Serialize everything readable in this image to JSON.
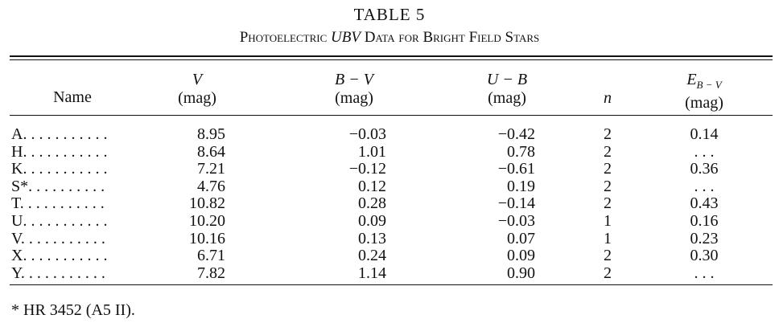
{
  "table": {
    "title": "TABLE 5",
    "subtitle_prefix": "Photoelectric ",
    "subtitle_italic": "UBV",
    "subtitle_suffix": " Data for Bright Field Stars",
    "headers": {
      "name": "Name",
      "v": "V",
      "v_unit": "(mag)",
      "bv": "B − V",
      "bv_unit": "(mag)",
      "ub": "U − B",
      "ub_unit": "(mag)",
      "n": "n",
      "e": "E",
      "e_sub": "B − V",
      "e_unit": "(mag)"
    },
    "rows": [
      {
        "name": "A. . . . . . . . . . .",
        "v": "8.95",
        "bv": "−0.03",
        "ub": "−0.42",
        "n": "2",
        "e": "0.14"
      },
      {
        "name": "H. . . . . . . . . . .",
        "v": "8.64",
        "bv": "1.01",
        "ub": "0.78",
        "n": "2",
        "e": ". . ."
      },
      {
        "name": "K. . . . . . . . . . .",
        "v": "7.21",
        "bv": "−0.12",
        "ub": "−0.61",
        "n": "2",
        "e": "0.36"
      },
      {
        "name": "S*. . . . . . . . . .",
        "v": "4.76",
        "bv": "0.12",
        "ub": "0.19",
        "n": "2",
        "e": ". . ."
      },
      {
        "name": "T. . . . . . . . . . .",
        "v": "10.82",
        "bv": "0.28",
        "ub": "−0.14",
        "n": "2",
        "e": "0.43"
      },
      {
        "name": "U. . . . . . . . . . .",
        "v": "10.20",
        "bv": "0.09",
        "ub": "−0.03",
        "n": "1",
        "e": "0.16"
      },
      {
        "name": "V. . . . . . . . . . .",
        "v": "10.16",
        "bv": "0.13",
        "ub": "0.07",
        "n": "1",
        "e": "0.23"
      },
      {
        "name": "X. . . . . . . . . . .",
        "v": "6.71",
        "bv": "0.24",
        "ub": "0.09",
        "n": "2",
        "e": "0.30"
      },
      {
        "name": "Y. . . . . . . . . . .",
        "v": "7.82",
        "bv": "1.14",
        "ub": "0.90",
        "n": "2",
        "e": ". . ."
      }
    ],
    "footnote": "* HR 3452 (A5 II)."
  }
}
